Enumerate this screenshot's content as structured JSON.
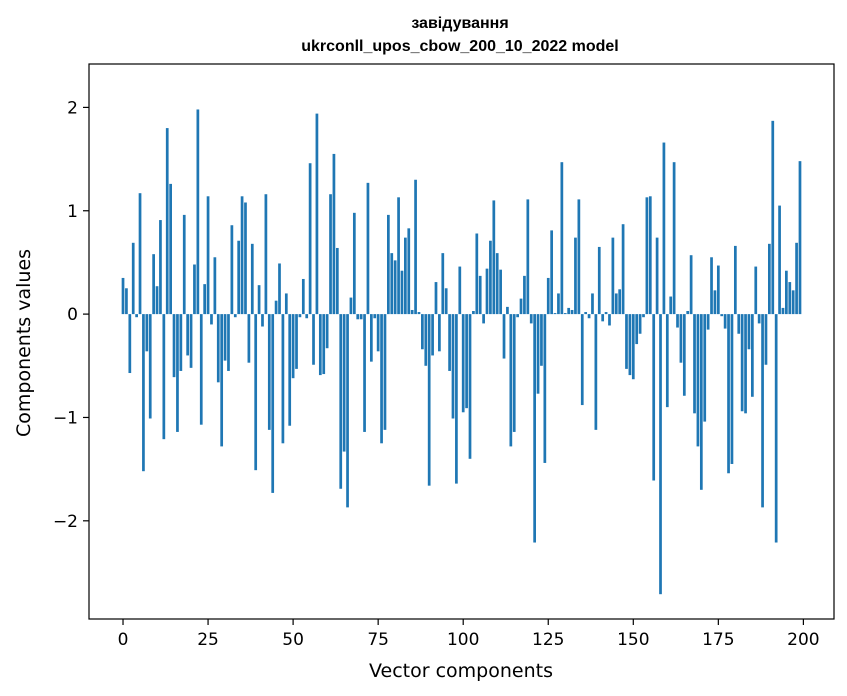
{
  "chart_data": {
    "type": "bar",
    "title": "завідування",
    "subtitle": "ukrconll_upos_cbow_200_10_2022 model",
    "xlabel": "Vector components",
    "ylabel": "Components values",
    "xlim": [
      -10,
      209
    ],
    "ylim": [
      -2.95,
      2.42
    ],
    "xticks": [
      0,
      25,
      50,
      75,
      100,
      125,
      150,
      175,
      200
    ],
    "xtick_labels": [
      "0",
      "25",
      "50",
      "75",
      "100",
      "125",
      "150",
      "175",
      "200"
    ],
    "yticks": [
      -2,
      -1,
      0,
      1,
      2
    ],
    "ytick_labels": [
      "−2",
      "−1",
      "0",
      "1",
      "2"
    ],
    "grid": false,
    "color": "#1f77b4",
    "x": [
      0,
      1,
      2,
      3,
      4,
      5,
      6,
      7,
      8,
      9,
      10,
      11,
      12,
      13,
      14,
      15,
      16,
      17,
      18,
      19,
      20,
      21,
      22,
      23,
      24,
      25,
      26,
      27,
      28,
      29,
      30,
      31,
      32,
      33,
      34,
      35,
      36,
      37,
      38,
      39,
      40,
      41,
      42,
      43,
      44,
      45,
      46,
      47,
      48,
      49,
      50,
      51,
      52,
      53,
      54,
      55,
      56,
      57,
      58,
      59,
      60,
      61,
      62,
      63,
      64,
      65,
      66,
      67,
      68,
      69,
      70,
      71,
      72,
      73,
      74,
      75,
      76,
      77,
      78,
      79,
      80,
      81,
      82,
      83,
      84,
      85,
      86,
      87,
      88,
      89,
      90,
      91,
      92,
      93,
      94,
      95,
      96,
      97,
      98,
      99,
      100,
      101,
      102,
      103,
      104,
      105,
      106,
      107,
      108,
      109,
      110,
      111,
      112,
      113,
      114,
      115,
      116,
      117,
      118,
      119,
      120,
      121,
      122,
      123,
      124,
      125,
      126,
      127,
      128,
      129,
      130,
      131,
      132,
      133,
      134,
      135,
      136,
      137,
      138,
      139,
      140,
      141,
      142,
      143,
      144,
      145,
      146,
      147,
      148,
      149,
      150,
      151,
      152,
      153,
      154,
      155,
      156,
      157,
      158,
      159,
      160,
      161,
      162,
      163,
      164,
      165,
      166,
      167,
      168,
      169,
      170,
      171,
      172,
      173,
      174,
      175,
      176,
      177,
      178,
      179,
      180,
      181,
      182,
      183,
      184,
      185,
      186,
      187,
      188,
      189,
      190,
      191,
      192,
      193,
      194,
      195,
      196,
      197,
      198,
      199
    ],
    "values": [
      0.35,
      0.25,
      -0.57,
      0.69,
      -0.03,
      1.17,
      -1.52,
      -0.36,
      -1.01,
      0.58,
      0.27,
      0.91,
      -1.21,
      1.8,
      1.26,
      -0.61,
      -1.14,
      -0.55,
      0.96,
      -0.4,
      -0.52,
      0.48,
      1.98,
      -1.07,
      0.29,
      1.14,
      -0.1,
      0.55,
      -0.66,
      -1.28,
      -0.45,
      -0.55,
      0.86,
      -0.03,
      0.71,
      1.14,
      1.08,
      -0.47,
      0.68,
      -1.51,
      0.28,
      -0.12,
      1.16,
      -1.12,
      -1.73,
      0.13,
      0.49,
      -1.25,
      0.2,
      -1.08,
      -0.62,
      -0.53,
      -0.03,
      0.34,
      -0.04,
      1.46,
      -0.49,
      1.94,
      -0.59,
      -0.58,
      -0.33,
      1.16,
      1.55,
      0.64,
      -1.69,
      -1.33,
      -1.87,
      0.16,
      0.98,
      -0.05,
      -0.05,
      -1.14,
      1.27,
      -0.46,
      -0.04,
      -0.36,
      -1.25,
      -1.12,
      0.96,
      0.59,
      0.52,
      1.13,
      0.42,
      0.74,
      0.83,
      0.04,
      1.3,
      0.02,
      -0.34,
      -0.5,
      -1.66,
      -0.4,
      0.31,
      -0.36,
      0.59,
      0.25,
      -0.55,
      -1.01,
      -1.64,
      0.46,
      -0.95,
      -0.91,
      -1.4,
      0.03,
      0.78,
      0.37,
      -0.09,
      0.44,
      0.71,
      1.1,
      0.59,
      0.43,
      -0.43,
      0.07,
      -1.28,
      -1.14,
      -0.03,
      0.15,
      0.37,
      1.11,
      -0.09,
      -2.21,
      -0.77,
      -0.5,
      -1.44,
      0.35,
      0.81,
      0.01,
      0.2,
      1.47,
      0.01,
      0.06,
      0.04,
      0.74,
      1.11,
      -0.88,
      0.02,
      -0.04,
      0.2,
      -1.12,
      0.65,
      -0.07,
      0.02,
      -0.11,
      0.74,
      0.2,
      0.24,
      0.87,
      -0.53,
      -0.59,
      -0.63,
      -0.29,
      -0.19,
      -0.03,
      1.13,
      1.14,
      -1.61,
      0.74,
      -2.71,
      1.66,
      -0.9,
      0.17,
      1.47,
      -0.13,
      -0.47,
      -0.79,
      0.03,
      0.57,
      -0.96,
      -1.28,
      -1.7,
      -1.04,
      -0.15,
      0.55,
      0.23,
      0.47,
      -0.02,
      -0.14,
      -1.54,
      -1.45,
      0.66,
      -0.19,
      -0.94,
      -0.96,
      -0.34,
      -0.8,
      0.46,
      -0.09,
      -1.87,
      -0.49,
      0.68,
      1.87,
      -2.21,
      1.05,
      0.06,
      0.42,
      0.31,
      0.23,
      0.69,
      1.48
    ]
  }
}
